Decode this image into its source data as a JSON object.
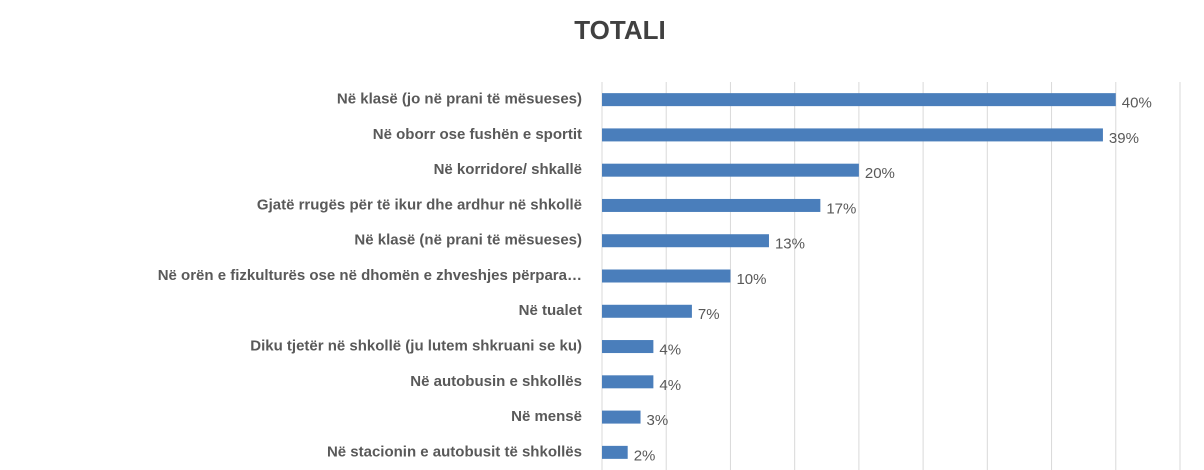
{
  "chart_data": {
    "type": "bar",
    "orientation": "horizontal",
    "title": "TOTALI",
    "categories": [
      "Në klasë (jo në prani të mësueses)",
      "Në oborr ose fushën e sportit",
      "Në korridore/ shkallë",
      "Gjatë rrugës për të ikur dhe ardhur në shkollë",
      "Në klasë (në prani të mësueses)",
      "Në orën e fizkulturës ose në dhomën e zhveshjes përpara…",
      "Në tualet",
      "Diku tjetër në shkollë (ju lutem shkruani se ku)",
      "Në autobusin e shkollës",
      "Në mensë",
      "Në stacionin e autobusit të shkollës"
    ],
    "values": [
      40,
      39,
      20,
      17,
      13,
      10,
      7,
      4,
      4,
      3,
      2
    ],
    "value_labels": [
      "40%",
      "39%",
      "20%",
      "17%",
      "13%",
      "10%",
      "7%",
      "4%",
      "4%",
      "3%",
      "2%"
    ],
    "color": "#4a7ebb",
    "xlim": [
      0,
      45
    ],
    "xticks": [
      0,
      5,
      10,
      15,
      20,
      25,
      30,
      35,
      40,
      45
    ],
    "grid": true
  }
}
